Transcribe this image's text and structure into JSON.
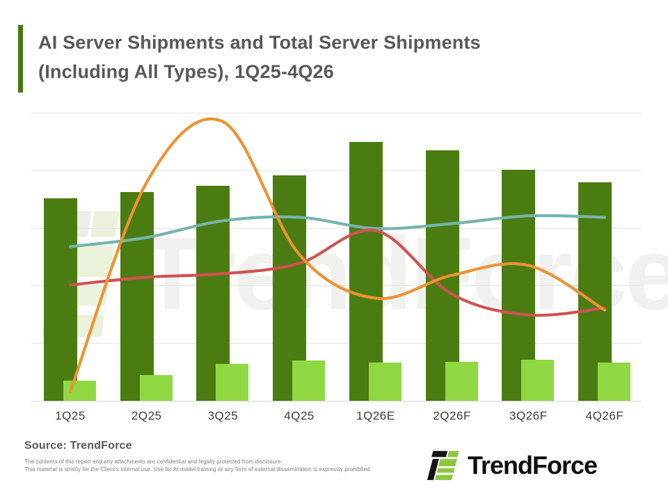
{
  "header": {
    "title_line1": "AI Server Shipments and Total Server Shipments",
    "title_line2": "(Including All Types), 1Q25-4Q26",
    "accent_color": "#45790f"
  },
  "chart_data": {
    "type": "combo-bar-line",
    "title": "AI Server Shipments and Total Server Shipments (Including All Types), 1Q25-4Q26",
    "categories": [
      "1Q25",
      "2Q25",
      "3Q25",
      "4Q25",
      "1Q26E",
      "2Q26F",
      "3Q26F",
      "4Q26F"
    ],
    "y_axis_visible": false,
    "grid": "horizontal",
    "legend": "none",
    "ylim": [
      0,
      120
    ],
    "series": [
      {
        "name": "total-server-shipments",
        "type": "bar",
        "color": "#4a7c12",
        "values": [
          70.2,
          72.4,
          74.6,
          78.2,
          89.8,
          86.9,
          80.1,
          75.8
        ]
      },
      {
        "name": "ai-server-shipments",
        "type": "bar",
        "color": "#8fd843",
        "values": [
          7.0,
          9.0,
          12.8,
          14.0,
          13.3,
          13.6,
          14.3,
          13.3
        ]
      },
      {
        "name": "trend-line-teal",
        "type": "line",
        "color": "#74b5ab",
        "values": [
          53.5,
          56.7,
          62.5,
          63.7,
          59.8,
          61.5,
          64.2,
          63.7
        ]
      },
      {
        "name": "trend-line-red",
        "type": "line",
        "color": "#d05252",
        "values": [
          40.2,
          42.9,
          44.1,
          47.7,
          59.1,
          37.0,
          29.8,
          32.2
        ]
      },
      {
        "name": "trend-line-orange",
        "type": "line",
        "color": "#ee9233",
        "values": [
          3.1,
          75.8,
          96.9,
          50.8,
          35.6,
          43.6,
          47.0,
          31.5
        ]
      }
    ]
  },
  "watermark": {
    "text": "TrendForce"
  },
  "footer": {
    "source": "Source: TrendForce",
    "disclaimer_line1": "The contents of this report and any attachments are confidential and legally protected from disclosure.",
    "disclaimer_line2": "This material is strictly for the Client's internal use. Use for AI model training or any form of external dissemination is expressly prohibited.",
    "logo_text": "TrendForce"
  }
}
